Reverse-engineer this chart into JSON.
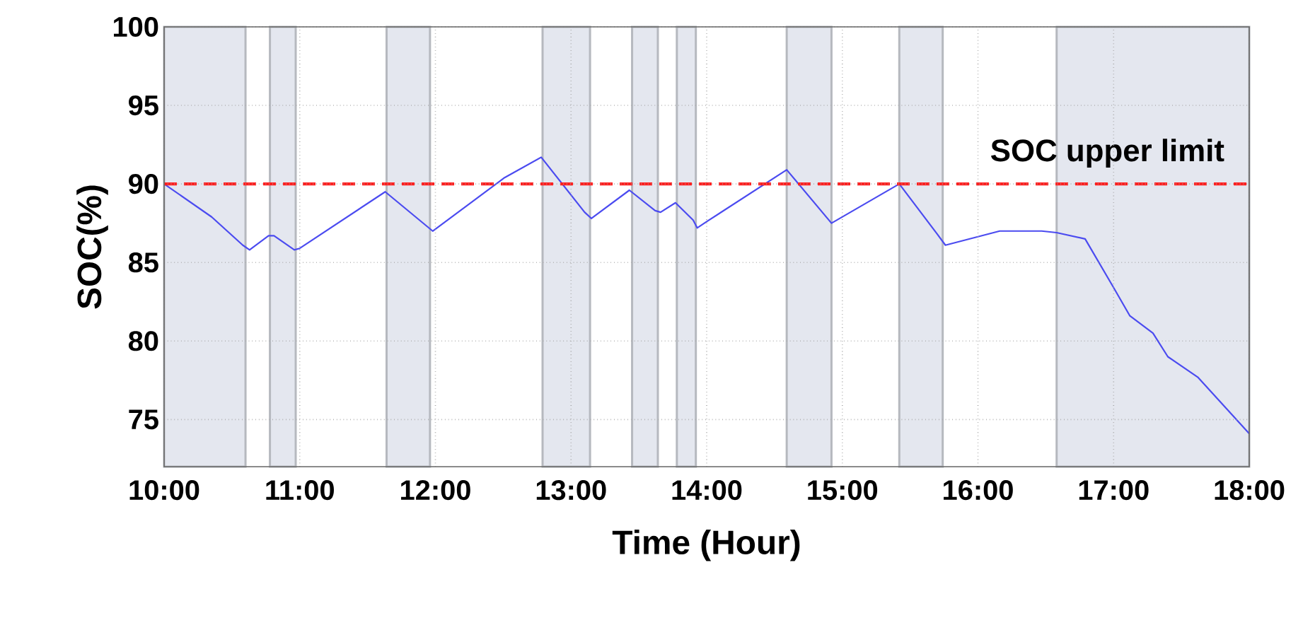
{
  "chart_data": {
    "type": "line",
    "xlabel": "Time (Hour)",
    "ylabel": "SOC(%)",
    "xlim": [
      10,
      18
    ],
    "ylim": [
      72,
      100
    ],
    "xticks": [
      {
        "value": 10,
        "label": "10:00"
      },
      {
        "value": 11,
        "label": "11:00"
      },
      {
        "value": 12,
        "label": "12:00"
      },
      {
        "value": 13,
        "label": "13:00"
      },
      {
        "value": 14,
        "label": "14:00"
      },
      {
        "value": 15,
        "label": "15:00"
      },
      {
        "value": 16,
        "label": "16:00"
      },
      {
        "value": 17,
        "label": "17:00"
      },
      {
        "value": 18,
        "label": "18:00"
      }
    ],
    "yticks": [
      75,
      80,
      85,
      90,
      95,
      100
    ],
    "grid": true,
    "marker": "none",
    "line_style": "solid",
    "series": [
      {
        "color": "#4b4bf0",
        "x": [
          10.0,
          10.35,
          10.58,
          10.63,
          10.77,
          10.81,
          10.96,
          11.0,
          11.63,
          11.98,
          12.51,
          12.78,
          13.1,
          13.15,
          13.43,
          13.62,
          13.66,
          13.77,
          13.9,
          13.93,
          14.0,
          14.59,
          14.92,
          15.42,
          15.7,
          15.76,
          16.16,
          16.47,
          16.58,
          16.79,
          17.0,
          17.12,
          17.29,
          17.4,
          17.62,
          18.0
        ],
        "values": [
          90.0,
          87.9,
          86.1,
          85.8,
          86.7,
          86.7,
          85.8,
          85.9,
          89.5,
          87.0,
          90.4,
          91.7,
          88.2,
          87.8,
          89.6,
          88.3,
          88.2,
          88.8,
          87.7,
          87.2,
          87.6,
          90.9,
          87.5,
          90.0,
          86.8,
          86.1,
          87.0,
          87.0,
          86.9,
          86.5,
          83.4,
          81.6,
          80.5,
          79.0,
          77.7,
          74.1
        ]
      }
    ],
    "ref_lines": [
      {
        "axis": "y",
        "value": 90,
        "label": "SOC upper limit",
        "color": "#ff2020",
        "line_style": "dashed"
      }
    ],
    "bands": [
      {
        "axis": "x",
        "from": 10.0,
        "to": 10.6,
        "color": "#e4e7ef"
      },
      {
        "axis": "x",
        "from": 10.78,
        "to": 10.97,
        "color": "#e4e7ef"
      },
      {
        "axis": "x",
        "from": 11.64,
        "to": 11.96,
        "color": "#e4e7ef"
      },
      {
        "axis": "x",
        "from": 12.79,
        "to": 13.14,
        "color": "#e4e7ef"
      },
      {
        "axis": "x",
        "from": 13.45,
        "to": 13.64,
        "color": "#e4e7ef"
      },
      {
        "axis": "x",
        "from": 13.78,
        "to": 13.92,
        "color": "#e4e7ef"
      },
      {
        "axis": "x",
        "from": 14.59,
        "to": 14.92,
        "color": "#e4e7ef"
      },
      {
        "axis": "x",
        "from": 15.42,
        "to": 15.74,
        "color": "#e4e7ef"
      },
      {
        "axis": "x",
        "from": 16.58,
        "to": 18.0,
        "color": "#e4e7ef"
      }
    ]
  }
}
